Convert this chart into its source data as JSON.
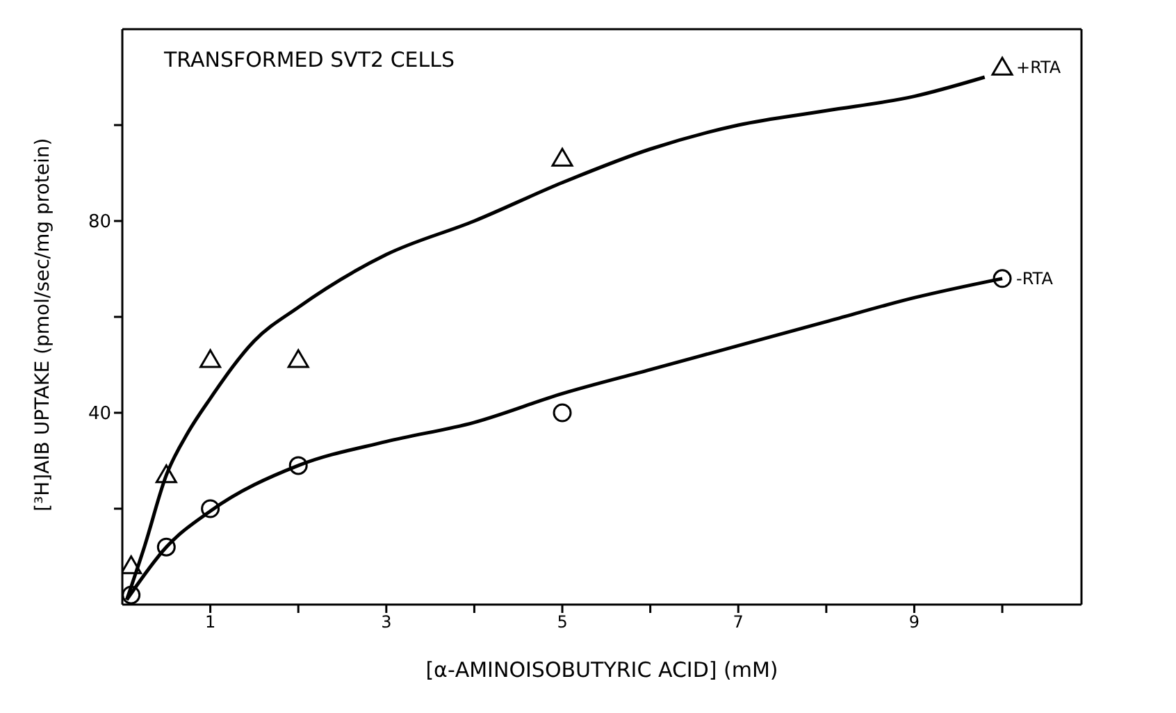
{
  "chart_data": {
    "type": "scatter",
    "title": "TRANSFORMED SVT2 CELLS",
    "xlabel": "[α-AMINOISOBUTYRIC ACID] (mM)",
    "ylabel": "[³H]AIB UPTAKE (pmol/sec/mg protein)",
    "xlim": [
      0,
      10.9
    ],
    "ylim": [
      0,
      120
    ],
    "xticks": [
      {
        "value": 1,
        "label": "1"
      },
      {
        "value": 2,
        "label": null
      },
      {
        "value": 3,
        "label": "3"
      },
      {
        "value": 4,
        "label": null
      },
      {
        "value": 5,
        "label": "5"
      },
      {
        "value": 6,
        "label": null
      },
      {
        "value": 7,
        "label": "7"
      },
      {
        "value": 8,
        "label": null
      },
      {
        "value": 9,
        "label": "9"
      },
      {
        "value": 10,
        "label": null
      }
    ],
    "yticks": [
      {
        "value": 20,
        "label": null
      },
      40,
      {
        "value": 60,
        "label": null
      },
      80,
      {
        "value": 100,
        "label": null
      }
    ],
    "series": [
      {
        "type": "line",
        "marker": "none",
        "line_style": "solid",
        "color": "#000000",
        "x": [
          0.05,
          0.25,
          0.5,
          0.75,
          1,
          1.5,
          2,
          3,
          4,
          5,
          6,
          7,
          8,
          9,
          9.8
        ],
        "values": [
          1,
          12,
          27,
          36,
          43,
          55,
          62,
          73,
          80,
          88,
          95,
          100,
          103,
          106,
          110
        ]
      },
      {
        "type": "line",
        "marker": "none",
        "line_style": "solid",
        "color": "#000000",
        "x": [
          0.05,
          0.5,
          1,
          2,
          3,
          4,
          5,
          6,
          7,
          8,
          9,
          10
        ],
        "values": [
          1,
          12,
          19.5,
          29,
          34,
          38,
          44,
          49,
          54,
          59,
          64,
          68
        ]
      },
      {
        "name": "+RTA",
        "marker": "triangle",
        "color": "#000000",
        "x": [
          0.1,
          0.5,
          1,
          2,
          5,
          10
        ],
        "values": [
          8,
          27,
          51,
          51,
          93,
          112
        ]
      },
      {
        "name": "-RTA",
        "marker": "circle",
        "color": "#000000",
        "x": [
          0.1,
          0.5,
          1,
          2,
          5,
          10
        ],
        "values": [
          2,
          12,
          20,
          29,
          40,
          68
        ]
      }
    ]
  }
}
